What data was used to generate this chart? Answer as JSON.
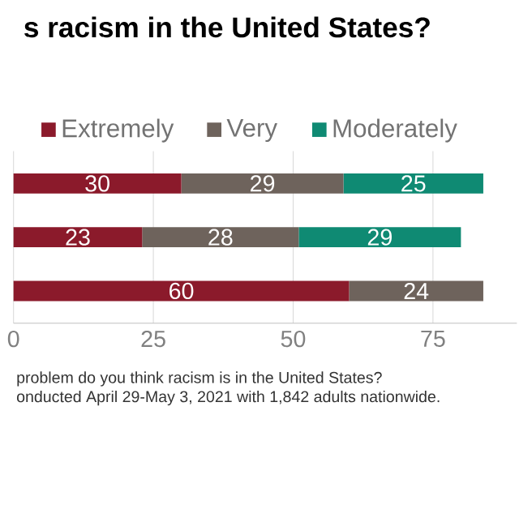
{
  "chart_data": {
    "type": "bar",
    "orientation": "horizontal",
    "stacked": true,
    "title": "s racism in the United States?",
    "categories": [
      null,
      null,
      null
    ],
    "series": [
      {
        "name": "Extremely",
        "color": "#8b1a2b",
        "values": [
          30,
          23,
          60
        ]
      },
      {
        "name": "Very",
        "color": "#6e635c",
        "values": [
          29,
          28,
          24
        ]
      },
      {
        "name": "Moderately",
        "color": "#0f8a73",
        "values": [
          25,
          29,
          null
        ]
      }
    ],
    "xlim": [
      0,
      90
    ],
    "xticks": [
      0,
      25,
      50,
      75
    ],
    "grid": "x",
    "legend": "top",
    "data_labels": true,
    "annotations": [
      "problem do you think racism is in the United States?",
      "onducted April 29-May 3, 2021 with 1,842 adults nationwide."
    ]
  }
}
